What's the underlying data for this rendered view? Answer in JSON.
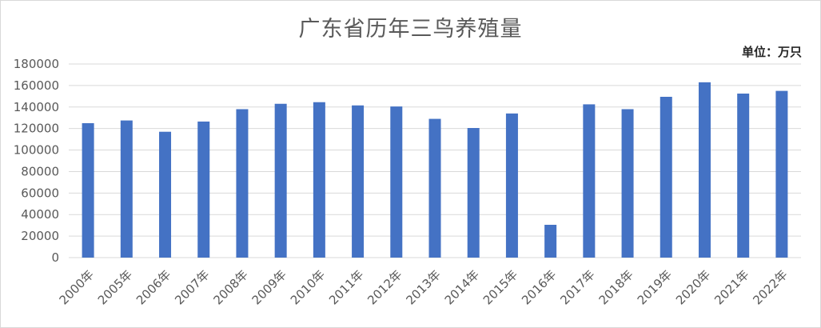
{
  "title": "广东省历年三鸟养殖量",
  "unit": "单位：万只",
  "chart_data": {
    "type": "bar",
    "title": "广东省历年三鸟养殖量",
    "unit_label": "单位：万只",
    "xlabel": "",
    "ylabel": "",
    "categories": [
      "2000年",
      "2005年",
      "2006年",
      "2007年",
      "2008年",
      "2009年",
      "2010年",
      "2011年",
      "2012年",
      "2013年",
      "2014年",
      "2015年",
      "2016年",
      "2017年",
      "2018年",
      "2019年",
      "2020年",
      "2021年",
      "2022年"
    ],
    "series": [
      {
        "values": [
          125000,
          127500,
          117000,
          126500,
          138000,
          143000,
          144500,
          141500,
          140500,
          129000,
          120500,
          134000,
          30500,
          142500,
          138000,
          149500,
          163000,
          152500,
          155000
        ]
      }
    ],
    "ylim": [
      0,
      180000
    ],
    "yticks": [
      0,
      20000,
      40000,
      60000,
      80000,
      100000,
      120000,
      140000,
      160000,
      180000
    ],
    "grid": true,
    "legend": "none",
    "colors": {
      "bar": "#4472C4",
      "grid": "#d9d9d9",
      "axis_text": "#595959"
    }
  }
}
